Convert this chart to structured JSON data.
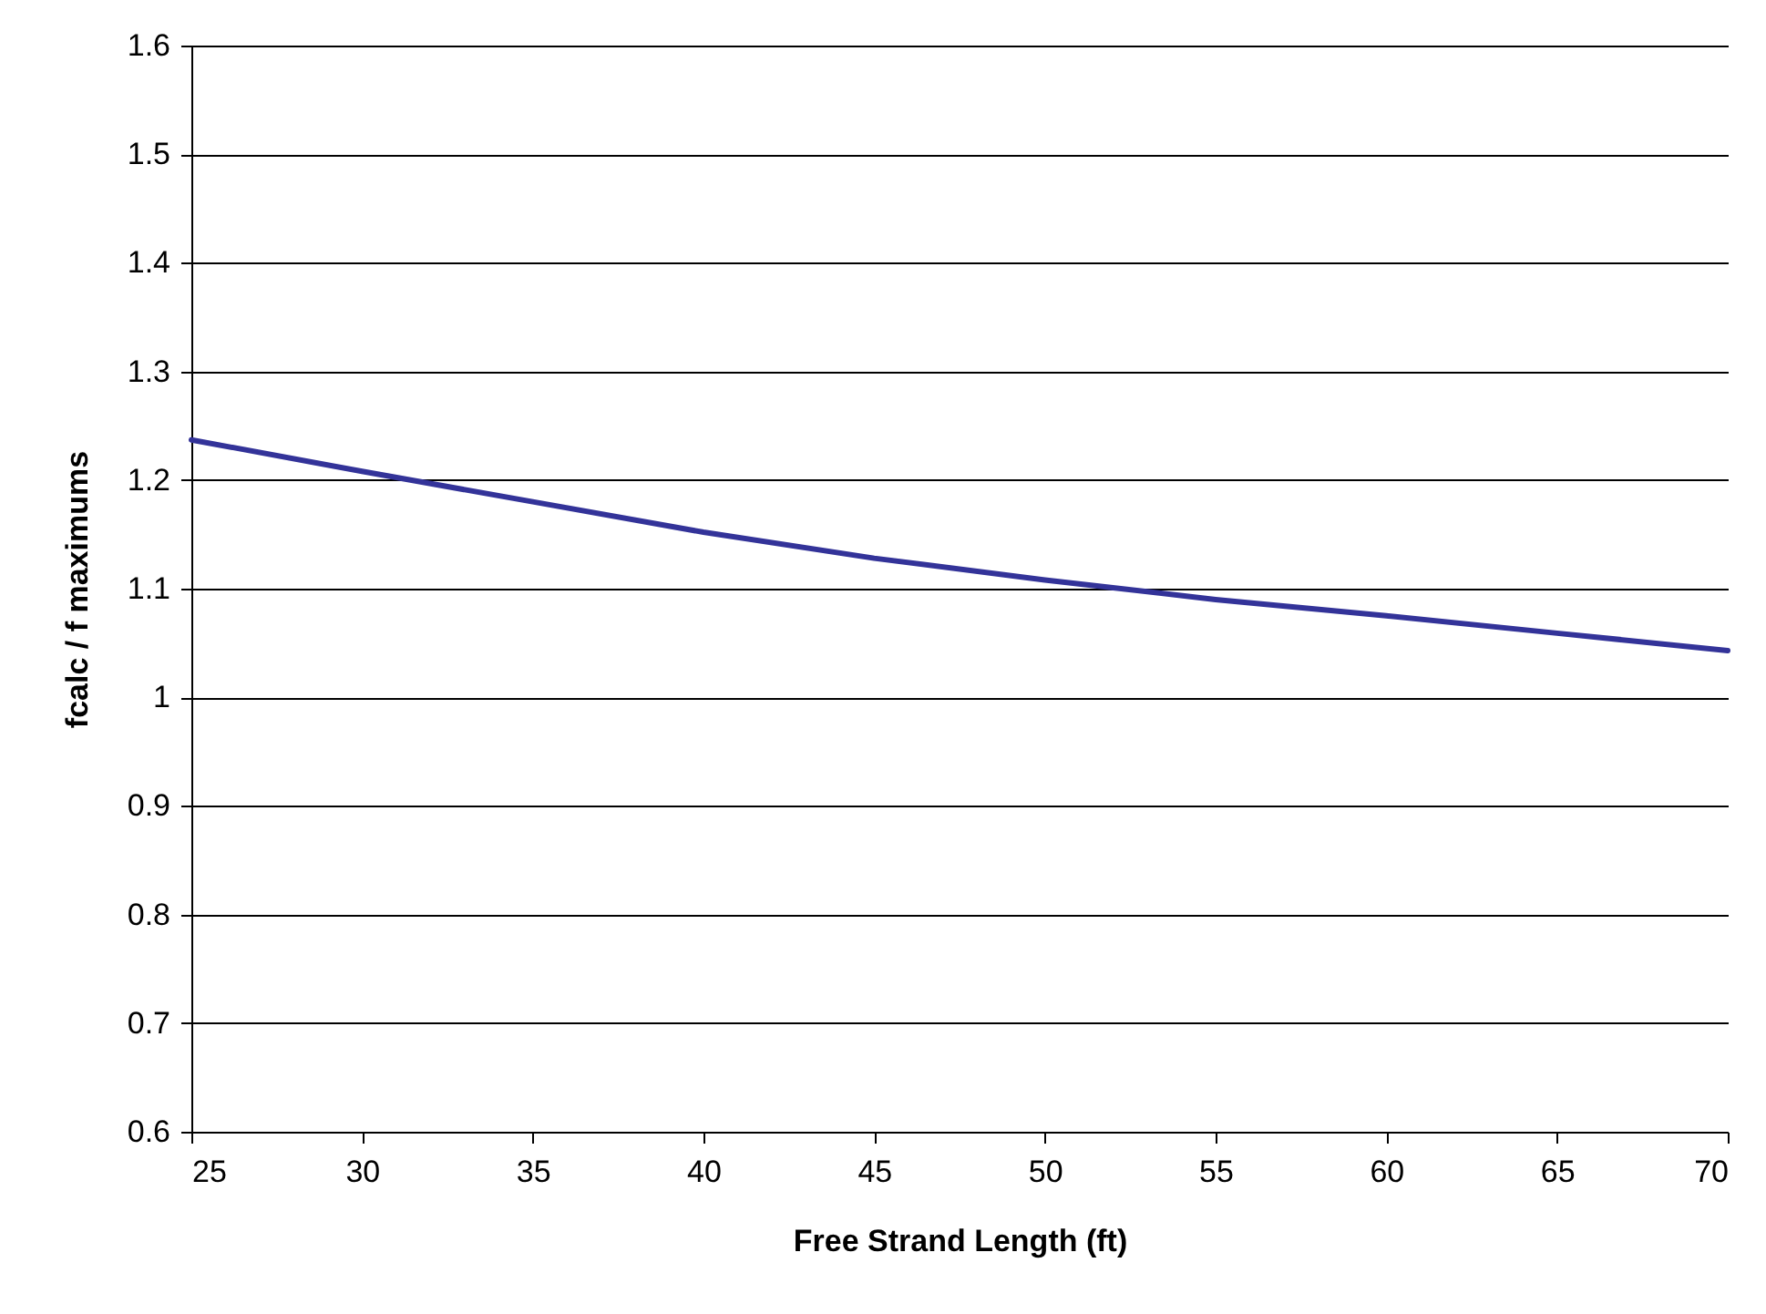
{
  "chart_data": {
    "type": "line",
    "xlabel": "Free Strand Length (ft)",
    "ylabel": "fcalc / f maximums",
    "x": [
      25,
      30,
      35,
      40,
      45,
      50,
      55,
      60,
      65,
      70
    ],
    "series": [
      {
        "color": "#333399",
        "values": [
          1.237,
          1.208,
          1.18,
          1.152,
          1.128,
          1.108,
          1.09,
          1.075,
          1.059,
          1.043
        ]
      }
    ],
    "xlim": [
      25,
      70
    ],
    "xticks": [
      25,
      30,
      35,
      40,
      45,
      50,
      55,
      60,
      65,
      70
    ],
    "ylim": [
      0.6,
      1.6
    ],
    "yticks": [
      0.6,
      0.7,
      0.8,
      0.9,
      1,
      1.1,
      1.2,
      1.3,
      1.4,
      1.5,
      1.6
    ],
    "grid": "y",
    "legend": false,
    "marker": "none",
    "line_style": "solid"
  }
}
